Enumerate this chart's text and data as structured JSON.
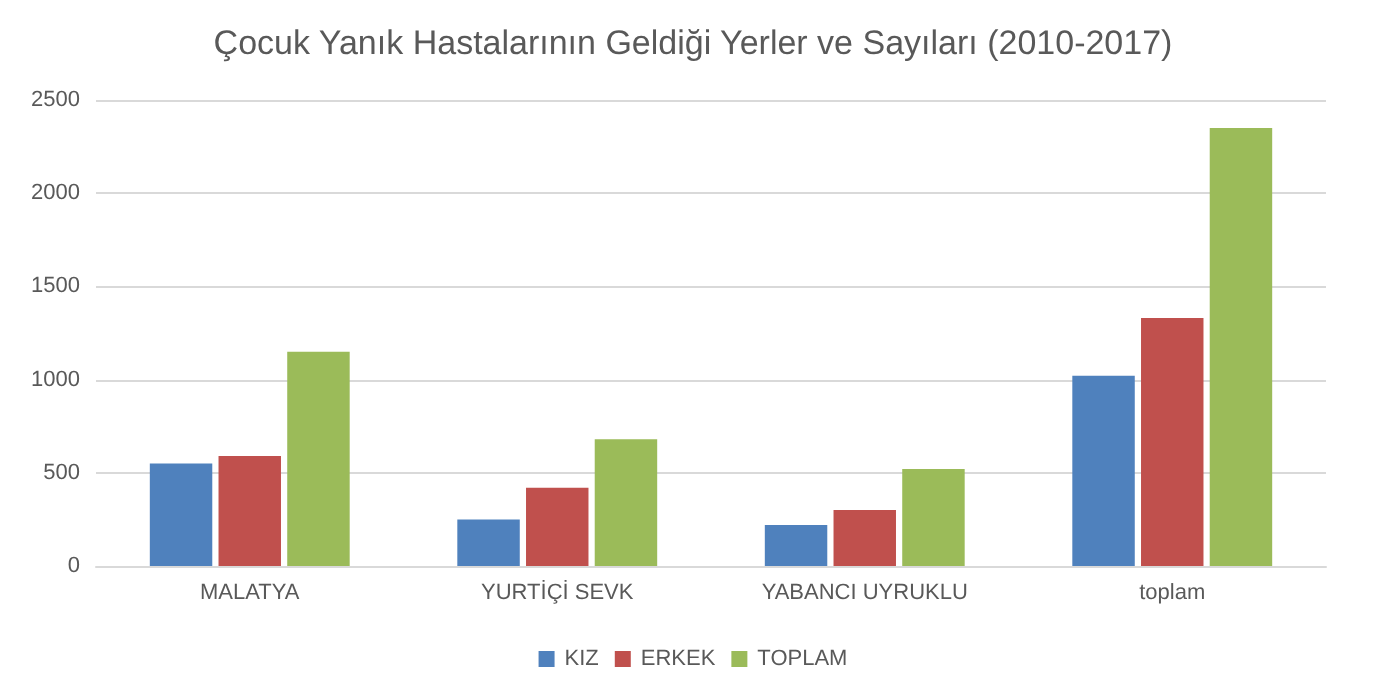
{
  "chart_data": {
    "type": "bar",
    "title": "Çocuk Yanık Hastalarının Geldiği Yerler ve Sayıları (2010-2017)",
    "categories": [
      "MALATYA",
      "YURTİÇİ SEVK",
      "YABANCI UYRUKLU",
      "toplam"
    ],
    "series": [
      {
        "name": "KIZ",
        "color": "#4f81bd",
        "values": [
          550,
          250,
          220,
          1020
        ]
      },
      {
        "name": "ERKEK",
        "color": "#c0504d",
        "values": [
          590,
          420,
          300,
          1330
        ]
      },
      {
        "name": "TOPLAM",
        "color": "#9bbb59",
        "values": [
          1150,
          680,
          520,
          2350
        ]
      }
    ],
    "ylim": [
      0,
      2500
    ],
    "yticks": [
      0,
      500,
      1000,
      1500,
      2000,
      2500
    ],
    "grid": "y",
    "legend": "bottom"
  }
}
